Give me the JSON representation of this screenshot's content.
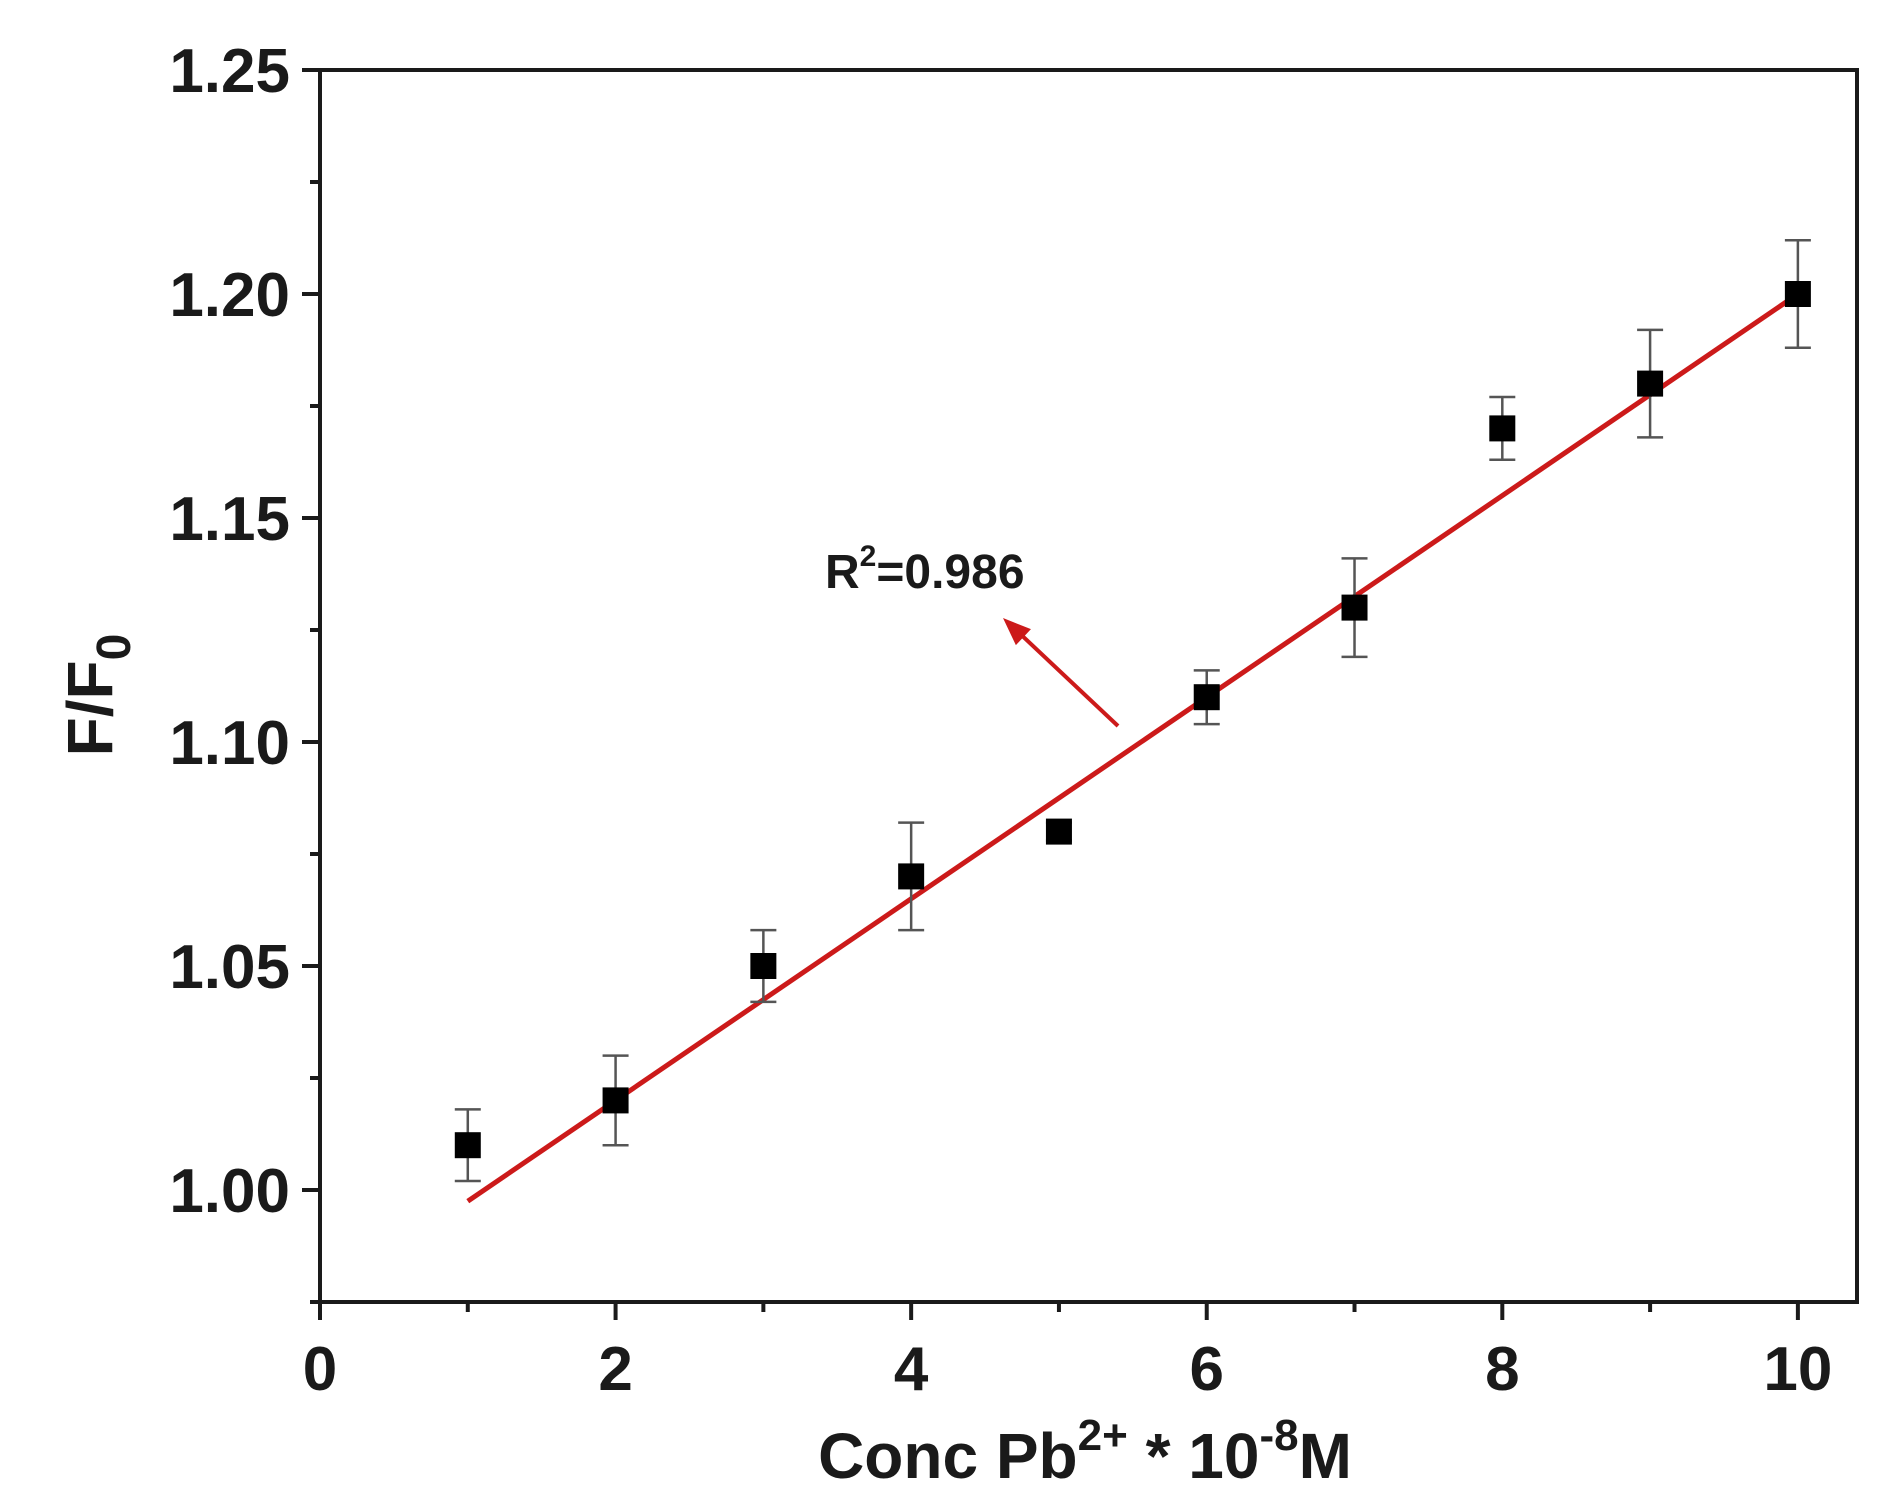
{
  "chart_data": {
    "type": "scatter",
    "xlabel": {
      "base": "Conc Pb",
      "sup1": "2+",
      "mid": " * 10",
      "sup2": "-8",
      "tail": "M"
    },
    "ylabel": {
      "base": "F/F",
      "sub": "0"
    },
    "xlim": [
      0,
      10.4
    ],
    "ylim": [
      0.975,
      1.25
    ],
    "x_ticks": [
      "0",
      "2",
      "4",
      "6",
      "8",
      "10"
    ],
    "y_ticks": [
      "1.00",
      "1.05",
      "1.10",
      "1.15",
      "1.20",
      "1.25"
    ],
    "series": [
      {
        "x": [
          1,
          2,
          3,
          4,
          5,
          6,
          7,
          8,
          9,
          10
        ],
        "y": [
          1.01,
          1.02,
          1.05,
          1.07,
          1.08,
          1.11,
          1.13,
          1.17,
          1.18,
          1.2
        ],
        "error": [
          0.008,
          0.01,
          0.008,
          0.012,
          0.002,
          0.006,
          0.011,
          0.007,
          0.012,
          0.012
        ],
        "marker": "square",
        "color": "#000000"
      }
    ],
    "fit_line": {
      "x": [
        1,
        10
      ],
      "y": [
        0.9975,
        1.2
      ],
      "color": "#cc1a1a"
    },
    "annotation": {
      "base": "R",
      "sup": "2",
      "rest": "=0.986",
      "arrow_color": "#cc1a1a"
    },
    "grid": false
  }
}
